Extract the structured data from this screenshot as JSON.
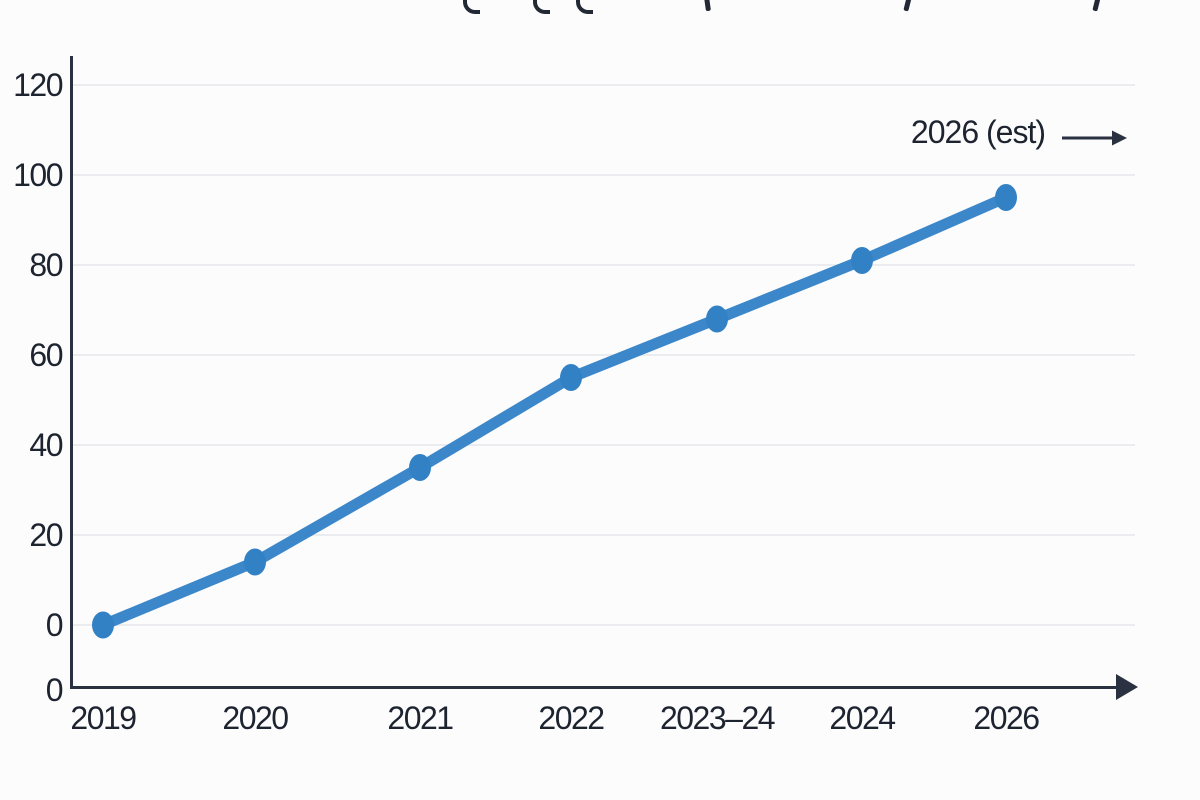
{
  "chart_data": {
    "type": "line",
    "title": "",
    "title_clipped": true,
    "categories": [
      "2019",
      "2020",
      "2021",
      "2022",
      "2023–24",
      "2024",
      "2026"
    ],
    "series": [
      {
        "name": "main-series",
        "values": [
          0,
          14,
          35,
          55,
          68,
          81,
          95
        ]
      }
    ],
    "y_ticks": [
      0,
      20,
      40,
      60,
      80,
      100,
      120
    ],
    "origin_label": "0",
    "ylim": [
      0,
      125
    ],
    "xlabel": "",
    "ylabel": "",
    "grid": true,
    "legend_position": "none",
    "annotation": {
      "label": "2026 (est)",
      "arrow": "right-arrow"
    },
    "colors": {
      "line": "#3b87c9",
      "point": "#3181c4",
      "axis": "#2a3140",
      "grid": "#ebecf0",
      "text": "#1d2430",
      "background": "#fcfcfd"
    }
  }
}
